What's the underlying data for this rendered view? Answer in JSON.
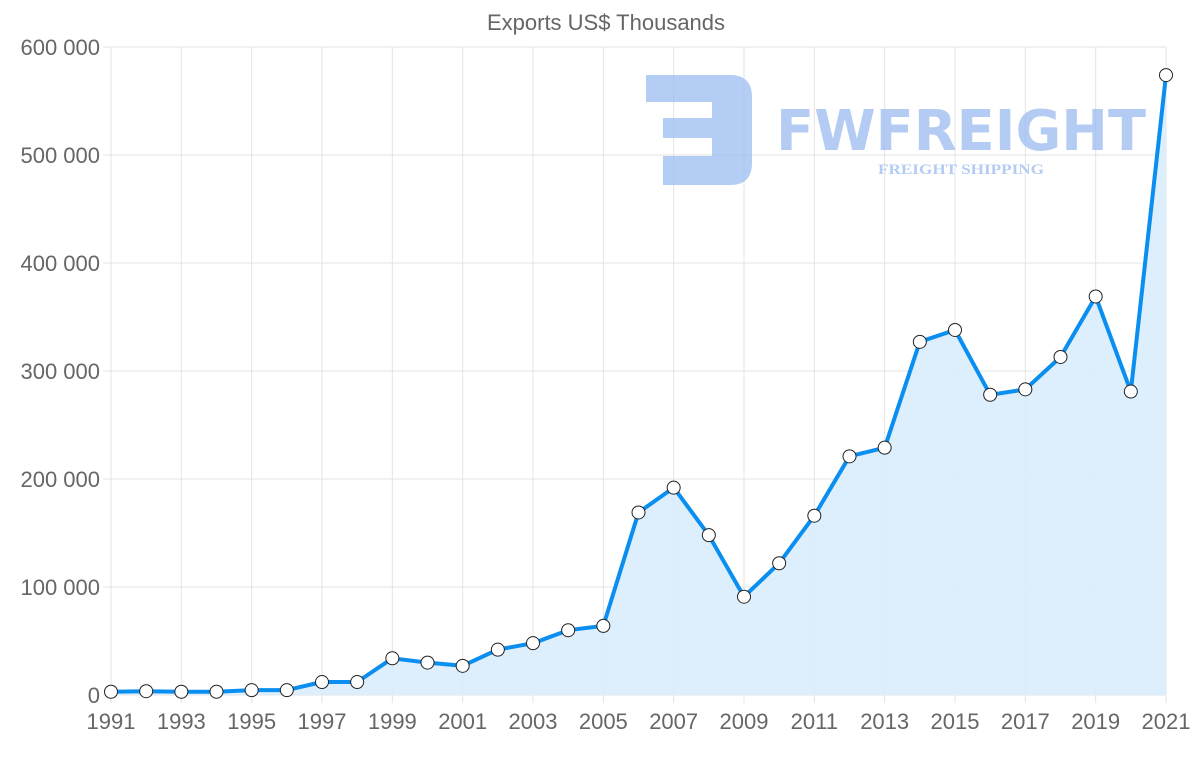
{
  "chart_data": {
    "type": "area",
    "title": "Exports US$ Thousands",
    "xlabel": "",
    "ylabel": "",
    "ylim": [
      0,
      600000
    ],
    "yticks": [
      0,
      100000,
      200000,
      300000,
      400000,
      500000,
      600000
    ],
    "ytick_labels": [
      "0",
      "100 000",
      "200 000",
      "300 000",
      "400 000",
      "500 000",
      "600 000"
    ],
    "xtick_labels": [
      "1991",
      "1993",
      "1995",
      "1997",
      "1999",
      "2001",
      "2003",
      "2005",
      "2007",
      "2009",
      "2011",
      "2013",
      "2015",
      "2017",
      "2019",
      "2021"
    ],
    "grid": true,
    "series": [
      {
        "name": "Exports",
        "color": "#0a8ff0",
        "fill": "#d9ecfc",
        "x": [
          1991,
          1992,
          1993,
          1994,
          1995,
          1996,
          1997,
          1998,
          1999,
          2000,
          2001,
          2002,
          2003,
          2004,
          2005,
          2006,
          2007,
          2008,
          2009,
          2010,
          2011,
          2012,
          2013,
          2014,
          2015,
          2016,
          2017,
          2018,
          2019,
          2020,
          2021
        ],
        "values": [
          3000,
          3500,
          3000,
          3000,
          4500,
          4500,
          12000,
          12000,
          34000,
          30000,
          27000,
          42000,
          48000,
          60000,
          64000,
          169000,
          192000,
          148000,
          91000,
          122000,
          166000,
          221000,
          229000,
          327000,
          338000,
          278000,
          283000,
          313000,
          369000,
          281000,
          574000
        ]
      }
    ]
  },
  "watermark": {
    "brand": "FWFREIGHT",
    "tagline": "FREIGHT SHIPPING",
    "color": "#9bbcf0"
  }
}
